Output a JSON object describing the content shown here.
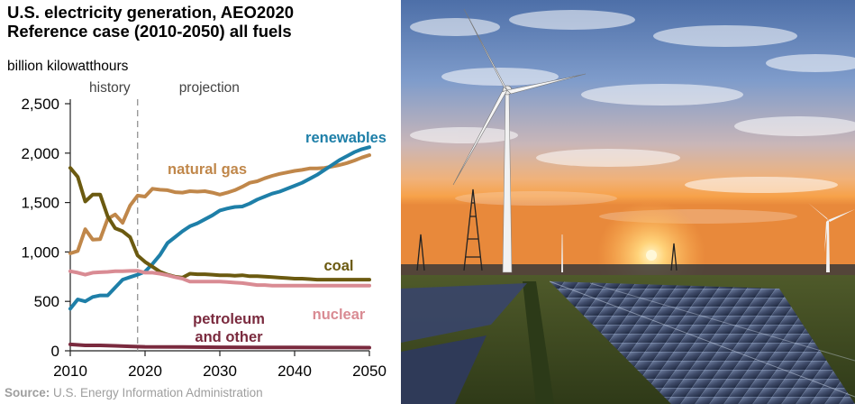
{
  "title_lines": [
    "U.S. electricity generation, AEO2020",
    "Reference case (2010-2050) all fuels"
  ],
  "unit_label": "billion kilowatthours",
  "source": {
    "prefix": "Source:",
    "text": "U.S. Energy Information Administration"
  },
  "chart_data": {
    "type": "line",
    "title": "U.S. electricity generation, AEO2020 Reference case (2010-2050) all fuels",
    "ylabel": "billion kilowatthours",
    "xlim": [
      2010,
      2050
    ],
    "ylim": [
      0,
      2500
    ],
    "x_ticks": [
      "2010",
      "2020",
      "2030",
      "2040",
      "2050"
    ],
    "y_ticks": [
      "0",
      "500",
      "1,000",
      "1,500",
      "2,000",
      "2,500"
    ],
    "y_tick_values": [
      0,
      500,
      1000,
      1500,
      2000,
      2500
    ],
    "x_tick_values": [
      2010,
      2020,
      2030,
      2040,
      2050
    ],
    "divider_year": 2019,
    "period_labels": {
      "history": "history",
      "projection": "projection"
    },
    "grid": false,
    "legend": "direct labels",
    "series": [
      {
        "name": "natural gas",
        "label_lines": [
          "natural gas"
        ],
        "color": "#c0874a",
        "x": [
          2010,
          2011,
          2012,
          2013,
          2014,
          2015,
          2016,
          2017,
          2018,
          2019,
          2020,
          2021,
          2022,
          2023,
          2024,
          2025,
          2026,
          2027,
          2028,
          2029,
          2030,
          2031,
          2032,
          2033,
          2034,
          2035,
          2036,
          2037,
          2038,
          2039,
          2040,
          2041,
          2042,
          2043,
          2044,
          2045,
          2046,
          2047,
          2048,
          2049,
          2050
        ],
        "y": [
          985,
          1010,
          1230,
          1125,
          1130,
          1335,
          1380,
          1295,
          1470,
          1570,
          1560,
          1640,
          1630,
          1625,
          1605,
          1600,
          1615,
          1610,
          1615,
          1600,
          1580,
          1600,
          1625,
          1660,
          1700,
          1715,
          1745,
          1770,
          1790,
          1805,
          1820,
          1830,
          1845,
          1845,
          1850,
          1865,
          1880,
          1900,
          1925,
          1955,
          1980
        ]
      },
      {
        "name": "renewables",
        "label_lines": [
          "renewables"
        ],
        "color": "#1e7fa8",
        "x": [
          2010,
          2011,
          2012,
          2013,
          2014,
          2015,
          2016,
          2017,
          2018,
          2019,
          2020,
          2021,
          2022,
          2023,
          2024,
          2025,
          2026,
          2027,
          2028,
          2029,
          2030,
          2031,
          2032,
          2033,
          2034,
          2035,
          2036,
          2037,
          2038,
          2039,
          2040,
          2041,
          2042,
          2043,
          2044,
          2045,
          2046,
          2047,
          2048,
          2049,
          2050
        ],
        "y": [
          425,
          520,
          500,
          545,
          560,
          560,
          640,
          720,
          745,
          770,
          800,
          880,
          970,
          1090,
          1150,
          1210,
          1260,
          1290,
          1330,
          1370,
          1420,
          1440,
          1455,
          1460,
          1490,
          1530,
          1560,
          1590,
          1610,
          1640,
          1670,
          1700,
          1740,
          1780,
          1830,
          1880,
          1930,
          1970,
          2010,
          2040,
          2060
        ]
      },
      {
        "name": "coal",
        "label_lines": [
          "coal"
        ],
        "color": "#6b5a10",
        "x": [
          2010,
          2011,
          2012,
          2013,
          2014,
          2015,
          2016,
          2017,
          2018,
          2019,
          2020,
          2021,
          2022,
          2023,
          2024,
          2025,
          2026,
          2027,
          2028,
          2029,
          2030,
          2031,
          2032,
          2033,
          2034,
          2035,
          2036,
          2037,
          2038,
          2039,
          2040,
          2041,
          2042,
          2043,
          2044,
          2045,
          2046,
          2047,
          2048,
          2049,
          2050
        ],
        "y": [
          1850,
          1760,
          1510,
          1580,
          1580,
          1360,
          1240,
          1210,
          1150,
          965,
          900,
          850,
          800,
          770,
          750,
          740,
          780,
          775,
          775,
          770,
          765,
          765,
          760,
          765,
          755,
          755,
          750,
          745,
          740,
          735,
          730,
          730,
          725,
          720,
          720,
          720,
          720,
          720,
          720,
          720,
          720
        ]
      },
      {
        "name": "nuclear",
        "label_lines": [
          "nuclear"
        ],
        "color": "#d98b93",
        "x": [
          2010,
          2011,
          2012,
          2013,
          2014,
          2015,
          2016,
          2017,
          2018,
          2019,
          2020,
          2021,
          2022,
          2023,
          2024,
          2025,
          2026,
          2027,
          2028,
          2029,
          2030,
          2031,
          2032,
          2033,
          2034,
          2035,
          2036,
          2037,
          2038,
          2039,
          2040,
          2041,
          2042,
          2043,
          2044,
          2045,
          2046,
          2047,
          2048,
          2049,
          2050
        ],
        "y": [
          805,
          790,
          770,
          790,
          795,
          798,
          805,
          805,
          808,
          810,
          790,
          790,
          780,
          765,
          745,
          730,
          700,
          700,
          700,
          700,
          700,
          695,
          690,
          685,
          675,
          665,
          665,
          660,
          660,
          660,
          660,
          660,
          660,
          660,
          660,
          660,
          660,
          660,
          660,
          660,
          660
        ]
      },
      {
        "name": "petroleum and other",
        "label_lines": [
          "petroleum",
          "and other"
        ],
        "color": "#7a2a3e",
        "x": [
          2010,
          2012,
          2014,
          2016,
          2018,
          2020,
          2025,
          2030,
          2035,
          2040,
          2045,
          2050
        ],
        "y": [
          65,
          55,
          55,
          50,
          45,
          40,
          38,
          36,
          35,
          34,
          33,
          32
        ]
      }
    ]
  },
  "colors": {
    "axis": "#222222",
    "tick_text": "#000000",
    "period_text": "#444444",
    "divider": "#9a9a9a",
    "source_text": "#9e9e9e"
  },
  "photo": {
    "description_icons": [
      "wind-turbine-icon",
      "solar-panel-icon",
      "power-pylon-icon",
      "sun-icon"
    ]
  }
}
